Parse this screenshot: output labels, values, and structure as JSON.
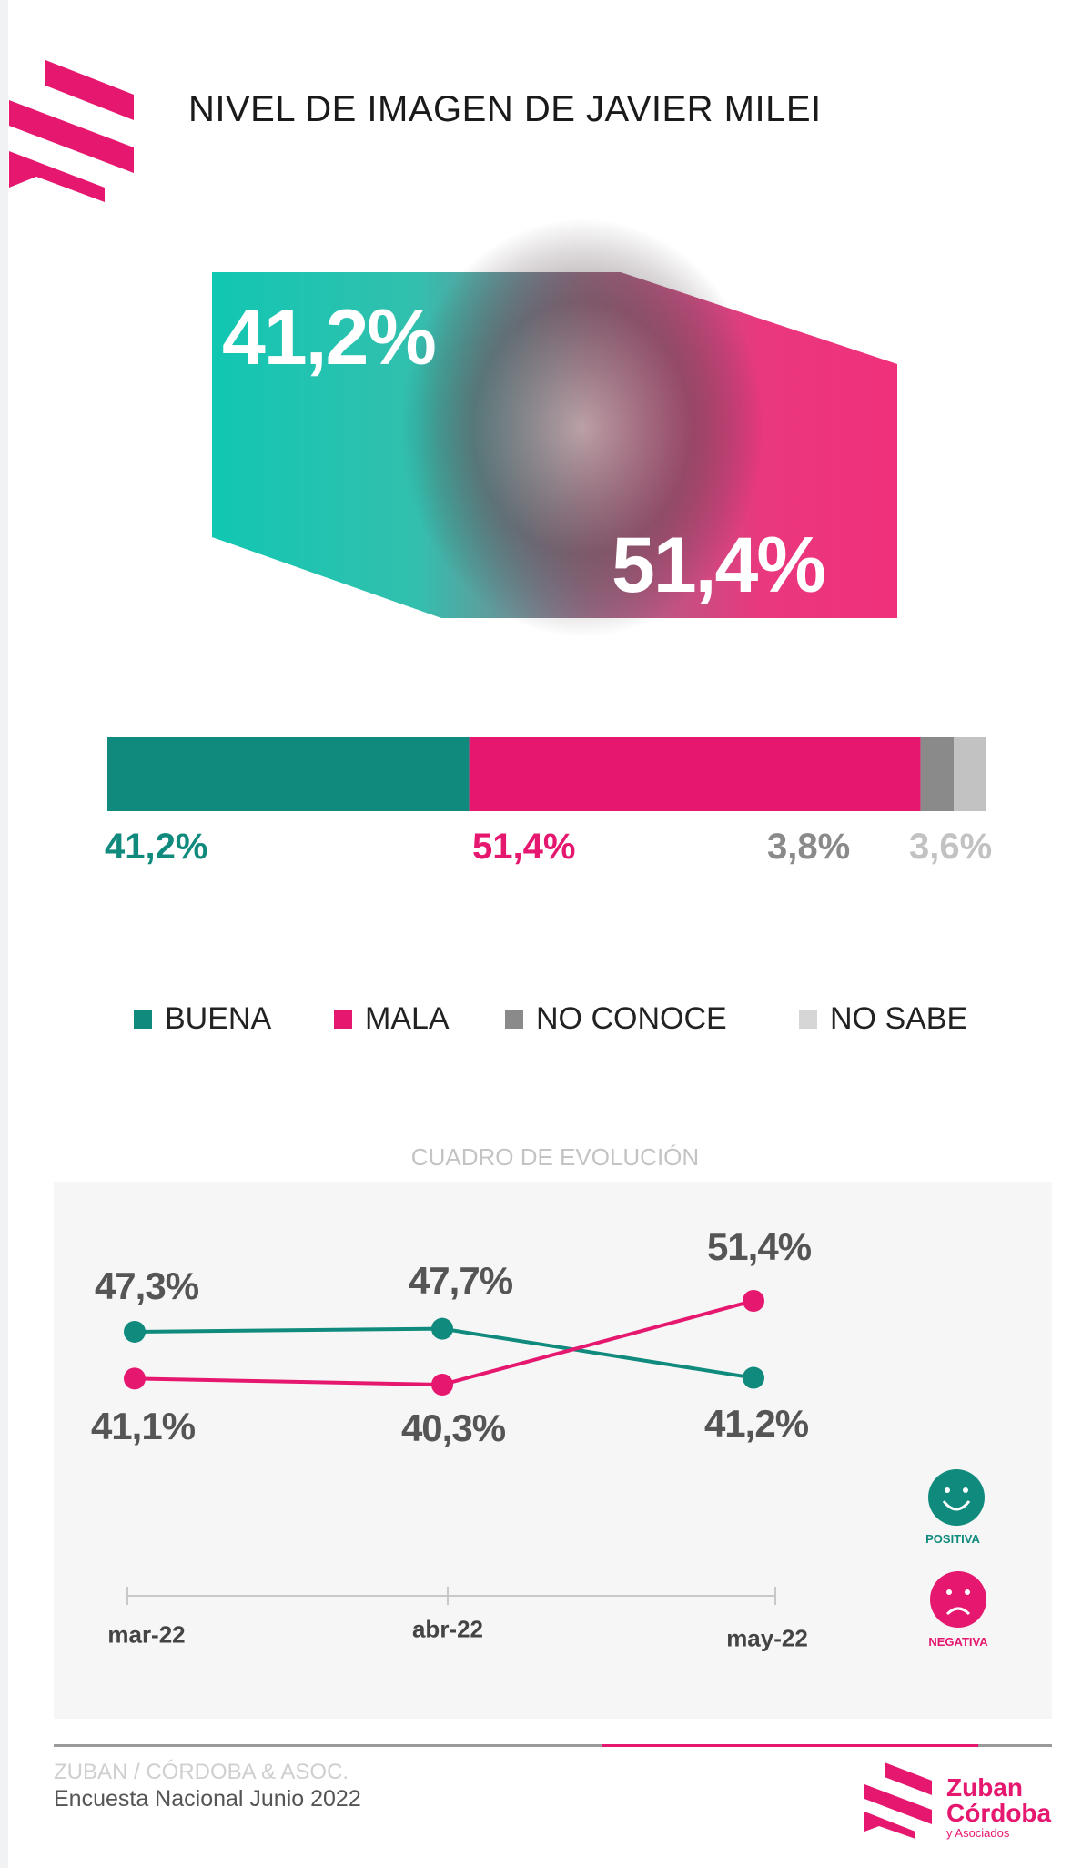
{
  "header": {
    "title": "NIVEL DE IMAGEN DE JAVIER MILEI"
  },
  "hero": {
    "good_value": "41,2%",
    "bad_value": "51,4%"
  },
  "colors": {
    "buena": "#0f8a7c",
    "mala": "#e5176f",
    "no_conoce": "#8a8a8a",
    "no_sabe": "#c2c2c2",
    "teal_bright": "#1ec9b4"
  },
  "chart_data": [
    {
      "type": "bar",
      "stacked": true,
      "categories": [
        "BUENA",
        "MALA",
        "NO CONOCE",
        "NO SABE"
      ],
      "values": [
        41.2,
        51.4,
        3.8,
        3.6
      ],
      "labels": [
        "41,2%",
        "51,4%",
        "3,8%",
        "3,6%"
      ],
      "legend": [
        "BUENA",
        "MALA",
        "NO CONOCE",
        "NO SABE"
      ],
      "legend_position": "bottom"
    },
    {
      "type": "line",
      "title": "CUADRO DE EVOLUCIÓN",
      "x": [
        "mar-22",
        "abr-22",
        "may-22"
      ],
      "series": [
        {
          "name": "POSITIVA",
          "values": [
            47.3,
            47.7,
            41.2
          ],
          "labels": [
            "47,3%",
            "47,7%",
            "41,2%"
          ]
        },
        {
          "name": "NEGATIVA",
          "values": [
            41.1,
            40.3,
            51.4
          ],
          "labels": [
            "41,1%",
            "40,3%",
            "51,4%"
          ]
        }
      ],
      "legend": [
        "POSITIVA",
        "NEGATIVA"
      ],
      "legend_position": "right"
    }
  ],
  "footer": {
    "source": "ZUBAN / CÓRDOBA & ASOC.",
    "survey": "Encuesta Nacional Junio 2022",
    "brand_line1": "Zuban",
    "brand_line2": "Córdoba",
    "brand_line3": "y Asociados"
  }
}
